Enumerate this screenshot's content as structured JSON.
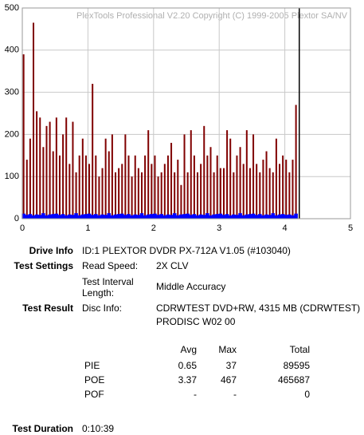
{
  "chart_data": {
    "type": "bar",
    "annotation": "PlexTools Professional V2.20 Copyright (C) 1999-2005 Plextor SA/NV",
    "x": [
      0.02,
      0.07,
      0.12,
      0.17,
      0.22,
      0.27,
      0.32,
      0.37,
      0.42,
      0.47,
      0.52,
      0.57,
      0.62,
      0.67,
      0.72,
      0.77,
      0.82,
      0.87,
      0.92,
      0.97,
      1.02,
      1.07,
      1.12,
      1.17,
      1.22,
      1.27,
      1.32,
      1.37,
      1.42,
      1.47,
      1.52,
      1.57,
      1.62,
      1.67,
      1.72,
      1.77,
      1.82,
      1.87,
      1.92,
      1.97,
      2.02,
      2.07,
      2.12,
      2.17,
      2.22,
      2.27,
      2.32,
      2.37,
      2.42,
      2.47,
      2.52,
      2.57,
      2.62,
      2.67,
      2.72,
      2.77,
      2.82,
      2.87,
      2.92,
      2.97,
      3.02,
      3.07,
      3.12,
      3.17,
      3.22,
      3.27,
      3.32,
      3.37,
      3.42,
      3.47,
      3.52,
      3.57,
      3.62,
      3.67,
      3.72,
      3.77,
      3.82,
      3.87,
      3.92,
      3.97,
      4.02,
      4.07,
      4.12,
      4.17
    ],
    "series": [
      {
        "color": "#800000",
        "values": [
          390,
          140,
          190,
          465,
          255,
          240,
          170,
          220,
          230,
          160,
          240,
          150,
          200,
          240,
          130,
          230,
          110,
          150,
          190,
          150,
          130,
          320,
          150,
          100,
          120,
          190,
          160,
          200,
          110,
          120,
          130,
          200,
          150,
          100,
          150,
          120,
          110,
          150,
          210,
          130,
          150,
          100,
          110,
          130,
          150,
          180,
          110,
          140,
          80,
          200,
          110,
          210,
          150,
          110,
          130,
          220,
          150,
          170,
          110,
          150,
          120,
          120,
          210,
          190,
          110,
          150,
          170,
          130,
          210,
          120,
          200,
          130,
          110,
          140,
          160,
          120,
          110,
          190,
          130,
          150,
          140,
          110,
          140,
          270
        ]
      },
      {
        "color": "#0000ff",
        "values": [
          12,
          9,
          11,
          8,
          10,
          9,
          13,
          8,
          10,
          11,
          12,
          9,
          11,
          8,
          10,
          9,
          13,
          8,
          10,
          11,
          12,
          9,
          11,
          8,
          10,
          9,
          13,
          8,
          10,
          11,
          12,
          9,
          11,
          8,
          10,
          9,
          13,
          8,
          10,
          11,
          12,
          9,
          11,
          8,
          10,
          9,
          13,
          8,
          10,
          11,
          12,
          9,
          11,
          8,
          10,
          9,
          13,
          8,
          10,
          11,
          12,
          9,
          11,
          8,
          10,
          9,
          13,
          8,
          10,
          11,
          12,
          9,
          11,
          8,
          10,
          9,
          13,
          8,
          10,
          11,
          9,
          10,
          8,
          12
        ]
      }
    ],
    "end_marker": 4.22,
    "xlim": [
      0,
      5
    ],
    "xticks": [
      0,
      1,
      2,
      3,
      4,
      5
    ],
    "ylim": [
      0,
      500
    ],
    "yticks": [
      0,
      100,
      200,
      300,
      400,
      500
    ],
    "grid": true
  },
  "drive_info": {
    "label": "Drive Info",
    "value": "ID:1 PLEXTOR DVDR PX-712A V1.05 (#103040)"
  },
  "test_settings": {
    "label": "Test Settings",
    "read_speed_label": "Read Speed:",
    "read_speed": "2X CLV",
    "interval_label": "Test Interval Length:",
    "interval": "Middle Accuracy"
  },
  "test_result": {
    "label": "Test Result",
    "disc_info_label": "Disc Info:",
    "disc_info": [
      "CDRWTEST DVD+RW, 4315 MB (CDRWTEST)",
      "PRODISC W02 00"
    ]
  },
  "stats": {
    "columns": [
      "Avg",
      "Max",
      "Total"
    ],
    "rows": [
      {
        "name": "PIE",
        "values": [
          0.65,
          37,
          89595
        ]
      },
      {
        "name": "POE",
        "values": [
          3.37,
          467,
          465687
        ]
      },
      {
        "name": "POF",
        "values": [
          "-",
          "-",
          0
        ]
      }
    ]
  },
  "test_duration": {
    "label": "Test Duration",
    "value": "0:10:39"
  }
}
